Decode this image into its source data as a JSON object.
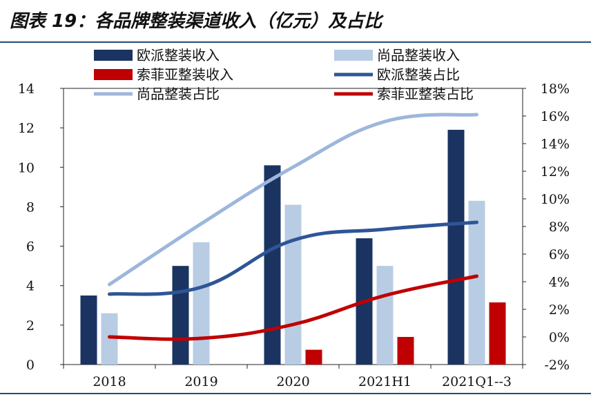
{
  "title": "图表 19：各品牌整装渠道收入（亿元）及占比",
  "chart_data": {
    "type": "bar",
    "title": "图表 19：各品牌整装渠道收入（亿元）及占比",
    "categories": [
      "2018",
      "2019",
      "2020",
      "2021H1",
      "2021Q1--3"
    ],
    "y_left": {
      "min": 0,
      "max": 14,
      "step": 2,
      "ticks": [
        "0",
        "2",
        "4",
        "6",
        "8",
        "10",
        "12",
        "14"
      ]
    },
    "y_right": {
      "min": -2,
      "max": 18,
      "step": 2,
      "ticks": [
        "-2%",
        "0%",
        "2%",
        "4%",
        "6%",
        "8%",
        "10%",
        "12%",
        "14%",
        "16%",
        "18%"
      ]
    },
    "grid": false,
    "legend": "top",
    "bar_series": [
      {
        "name": "欧派整装收入",
        "color": "#1a3361",
        "values": [
          3.5,
          5.0,
          10.1,
          6.4,
          11.9
        ]
      },
      {
        "name": "尚品整装收入",
        "color": "#b8cce4",
        "values": [
          2.6,
          6.2,
          8.1,
          5.0,
          8.3
        ]
      },
      {
        "name": "索菲亚整装收入",
        "color": "#c00000",
        "values": [
          0,
          0,
          0.75,
          1.4,
          3.15
        ]
      }
    ],
    "line_series": [
      {
        "name": "欧派整装占比",
        "color": "#2f5597",
        "axis": "right",
        "values": [
          3.1,
          3.6,
          7.0,
          7.8,
          8.3
        ]
      },
      {
        "name": "尚品整装占比",
        "color": "#9db6dc",
        "axis": "right",
        "values": [
          3.8,
          8.2,
          12.3,
          15.6,
          16.1
        ]
      },
      {
        "name": "索菲亚整装占比",
        "color": "#c00000",
        "axis": "right",
        "values": [
          0.0,
          -0.1,
          0.9,
          3.0,
          4.4
        ]
      }
    ],
    "legend_order": [
      "欧派整装收入",
      "尚品整装收入",
      "索菲亚整装收入",
      "欧派整装占比",
      "尚品整装占比",
      "索菲亚整装占比"
    ]
  }
}
